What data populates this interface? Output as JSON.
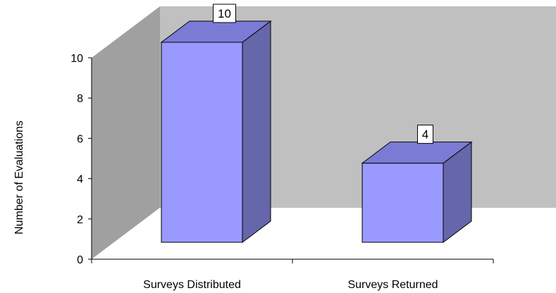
{
  "chart_data": {
    "type": "bar",
    "three_d": true,
    "categories": [
      "Surveys Distributed",
      "Surveys Returned"
    ],
    "values": [
      10,
      4
    ],
    "data_labels": [
      "10",
      "4"
    ],
    "ylabel": "Number of Evaluations",
    "ylim": [
      0,
      10
    ],
    "yticks": [
      "0",
      "2",
      "4",
      "6",
      "8",
      "10"
    ],
    "grid": false,
    "legend": "none",
    "colors": {
      "bar_front": "#9999ff",
      "bar_side": "#6666aa",
      "bar_top": "#7b7bd6",
      "back_wall": "#c0c0c0",
      "side_wall": "#a0a0a0",
      "floor": "#ffffff",
      "outline": "#000000"
    }
  }
}
